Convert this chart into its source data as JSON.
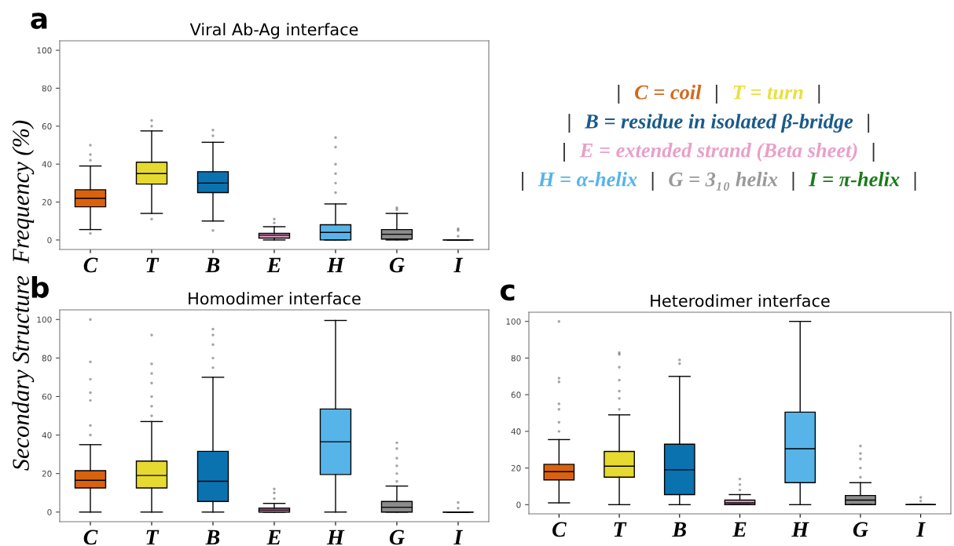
{
  "chart_data": [
    {
      "type": "box",
      "title": "Viral Ab-Ag interface",
      "ylabel": "Secondary Structure  Frequency (%)",
      "annotations": [
        "a"
      ],
      "categories": [
        "C",
        "T",
        "B",
        "E",
        "H",
        "G",
        "I"
      ],
      "colors": [
        "#d9620f",
        "#e6d930",
        "#0b72b0",
        "#e89cc8",
        "#56b4e9",
        "#8c8c8c",
        "#000000"
      ],
      "ylim": [
        -5,
        105
      ],
      "yticks": [
        0,
        20,
        40,
        60,
        80,
        100
      ],
      "boxes": [
        {
          "low": 5.5,
          "q1": 17.5,
          "median": 22,
          "q3": 26.5,
          "high": 39,
          "outliers": [
            3.5,
            42,
            45,
            50
          ]
        },
        {
          "low": 14,
          "q1": 29.5,
          "median": 35,
          "q3": 41,
          "high": 57.5,
          "outliers": [
            11,
            60,
            63
          ]
        },
        {
          "low": 10,
          "q1": 25,
          "median": 30,
          "q3": 36,
          "high": 51.5,
          "outliers": [
            5,
            55,
            58
          ]
        },
        {
          "low": 0,
          "q1": 1,
          "median": 2.5,
          "q3": 3.5,
          "high": 7,
          "outliers": [
            9,
            11
          ]
        },
        {
          "low": 0,
          "q1": 0,
          "median": 4,
          "q3": 8,
          "high": 19,
          "outliers": [
            25,
            30,
            35,
            40,
            49,
            54
          ]
        },
        {
          "low": 0,
          "q1": 0.5,
          "median": 3,
          "q3": 5.5,
          "high": 14,
          "outliers": [
            16,
            17
          ]
        },
        {
          "low": 0,
          "q1": 0,
          "median": 0,
          "q3": 0,
          "high": 0,
          "outliers": [
            2,
            5,
            6
          ]
        }
      ]
    },
    {
      "type": "box",
      "title": "Homodimer interface",
      "annotations": [
        "b"
      ],
      "categories": [
        "C",
        "T",
        "B",
        "E",
        "H",
        "G",
        "I"
      ],
      "colors": [
        "#d9620f",
        "#e6d930",
        "#0b72b0",
        "#e89cc8",
        "#56b4e9",
        "#8c8c8c",
        "#000000"
      ],
      "ylim": [
        -5,
        105
      ],
      "yticks": [
        0,
        20,
        40,
        60,
        80,
        100
      ],
      "boxes": [
        {
          "low": 0,
          "q1": 12.5,
          "median": 16.5,
          "q3": 21.5,
          "high": 35,
          "outliers": [
            40,
            45,
            58,
            62,
            69,
            78,
            100
          ]
        },
        {
          "low": 0,
          "q1": 12.5,
          "median": 19,
          "q3": 26.5,
          "high": 47,
          "outliers": [
            50,
            55,
            60,
            67,
            72,
            77,
            92
          ]
        },
        {
          "low": 0,
          "q1": 5.5,
          "median": 16,
          "q3": 31.5,
          "high": 70,
          "outliers": [
            75,
            80,
            87,
            92,
            95
          ]
        },
        {
          "low": 0,
          "q1": 0,
          "median": 1,
          "q3": 2,
          "high": 4.5,
          "outliers": [
            7,
            10,
            12
          ]
        },
        {
          "low": 0,
          "q1": 19.5,
          "median": 36.5,
          "q3": 53.5,
          "high": 99.5
        },
        {
          "low": 0,
          "q1": 0,
          "median": 2.5,
          "q3": 5.5,
          "high": 13.5,
          "outliers": [
            16,
            20,
            24,
            28,
            33,
            36
          ]
        },
        {
          "low": 0,
          "q1": 0,
          "median": 0,
          "q3": 0,
          "high": 0,
          "outliers": [
            2,
            5
          ]
        }
      ]
    },
    {
      "type": "box",
      "title": "Heterodimer interface",
      "annotations": [
        "c"
      ],
      "categories": [
        "C",
        "T",
        "B",
        "E",
        "H",
        "G",
        "I"
      ],
      "colors": [
        "#d9620f",
        "#e6d930",
        "#0b72b0",
        "#e89cc8",
        "#56b4e9",
        "#8c8c8c",
        "#000000"
      ],
      "ylim": [
        -5,
        105
      ],
      "yticks": [
        0,
        20,
        40,
        60,
        80,
        100
      ],
      "boxes": [
        {
          "low": 1,
          "q1": 13.5,
          "median": 18,
          "q3": 22,
          "high": 35.5,
          "outliers": [
            40,
            45,
            52,
            55,
            67,
            69,
            100
          ]
        },
        {
          "low": 0,
          "q1": 15,
          "median": 21,
          "q3": 29,
          "high": 49,
          "outliers": [
            52,
            58,
            62,
            68,
            75,
            82,
            83
          ]
        },
        {
          "low": 0,
          "q1": 5.5,
          "median": 19,
          "q3": 33,
          "high": 70,
          "outliers": [
            77,
            79
          ]
        },
        {
          "low": 0,
          "q1": 0,
          "median": 1,
          "q3": 2.5,
          "high": 5.5,
          "outliers": [
            8,
            11,
            14
          ]
        },
        {
          "low": 0,
          "q1": 12,
          "median": 30.5,
          "q3": 50.5,
          "high": 100
        },
        {
          "low": 0,
          "q1": 0,
          "median": 2.5,
          "q3": 5,
          "high": 12,
          "outliers": [
            15,
            20,
            25,
            28,
            32
          ]
        },
        {
          "low": 0,
          "q1": 0,
          "median": 0,
          "q3": 0,
          "high": 0,
          "outliers": [
            2,
            4
          ]
        }
      ]
    },
    {
      "type": "other",
      "annotations": [
        "|"
      ],
      "categories": [
        "C = coil",
        "T = turn",
        "B = residue in isolated β-bridge",
        "E = extended strand (Beta sheet)",
        "H = α-helix",
        "G = 3₁₀ helix",
        "I = π-helix"
      ],
      "colors": [
        "#d2691e",
        "#e8e040",
        "#1a5a8a",
        "#e8a0c8",
        "#56b4e9",
        "#999999",
        "#1a7a1a"
      ]
    }
  ]
}
